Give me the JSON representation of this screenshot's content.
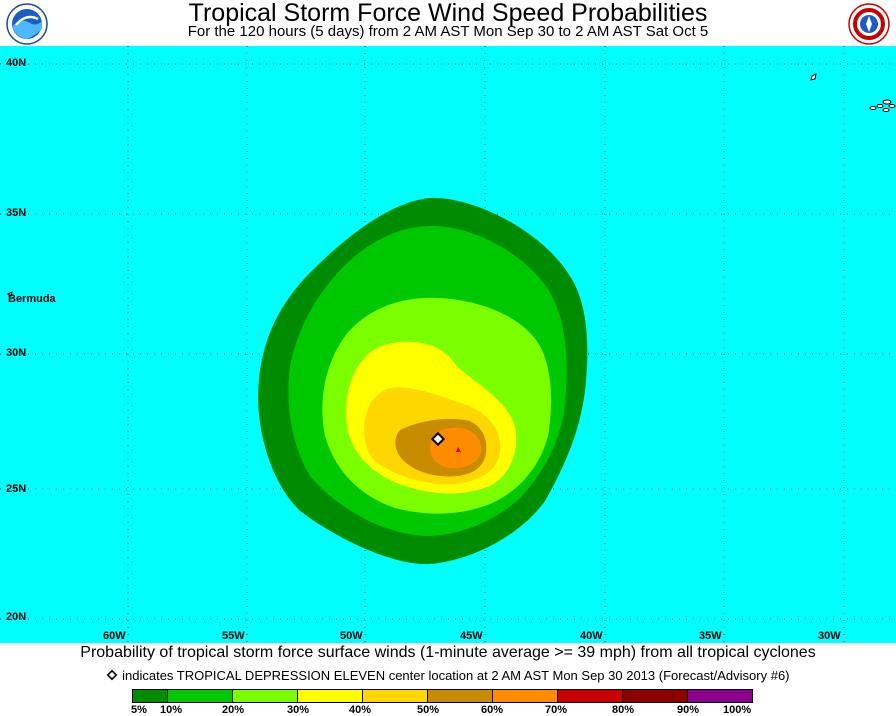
{
  "header": {
    "title": "Tropical Storm Force Wind Speed Probabilities",
    "subtitle": "For the 120 hours (5 days) from 2 AM AST Mon Sep 30 to 2 AM AST Sat Oct 5"
  },
  "logos": {
    "left": "NOAA",
    "right": "NATIONAL WEATHER SERVICE"
  },
  "map": {
    "ocean_color": "#00ffff",
    "land_color": "#ffffff",
    "lat_labels": [
      "40N",
      "35N",
      "30N",
      "25N",
      "20N"
    ],
    "lon_labels": [
      "60W",
      "55W",
      "50W",
      "45W",
      "40W",
      "35W",
      "30W"
    ],
    "place_label": "Bermuda",
    "storm_marker_icon": "diamond-icon"
  },
  "caption": "Probability of tropical storm force surface winds (1-minute average >= 39 mph) from all tropical cyclones",
  "legend": {
    "note": "indicates TROPICAL DEPRESSION ELEVEN center location at 2 AM AST Mon Sep 30 2013 (Forecast/Advisory #6)",
    "colors": [
      "#008c00",
      "#00c800",
      "#7bff00",
      "#ffff00",
      "#ffd700",
      "#c88c00",
      "#ff8c00",
      "#c80000",
      "#8c0000",
      "#8c008c"
    ],
    "ticks": [
      "5%",
      "10%",
      "20%",
      "30%",
      "40%",
      "50%",
      "60%",
      "70%",
      "80%",
      "90%",
      "100%"
    ]
  }
}
